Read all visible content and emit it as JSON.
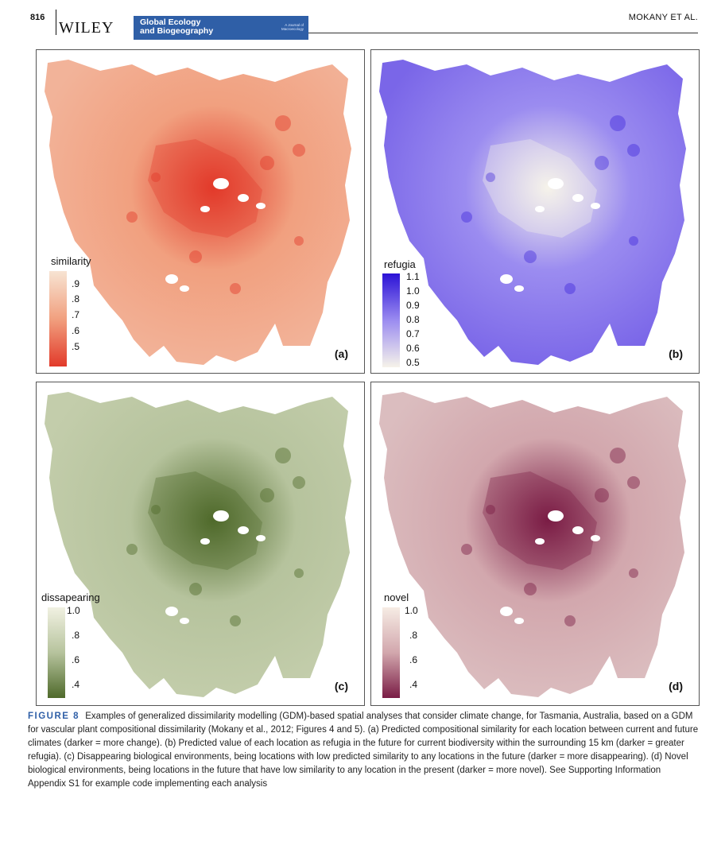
{
  "header": {
    "page_number": "816",
    "publisher": "WILEY",
    "journal_line1": "Global Ecology",
    "journal_line2": "and Biogeography",
    "journal_sub1": "A Journal of",
    "journal_sub2": "Macroecology",
    "authors": "MOKANY ET AL."
  },
  "panels": [
    {
      "label": "(a)",
      "legend_title": "similarity",
      "ticks": [
        ".9",
        ".8",
        ".7",
        ".6",
        ".5"
      ],
      "colors": {
        "light": "#f7e4d3",
        "mid": "#f1a07f",
        "dark": "#e23a2a",
        "base": "#f2b399"
      }
    },
    {
      "label": "(b)",
      "legend_title": "refugia",
      "ticks": [
        "1.1",
        "1.0",
        "0.9",
        "0.8",
        "0.7",
        "0.6",
        "0.5"
      ],
      "colors": {
        "light": "#f6f3ea",
        "mid": "#9b8cf0",
        "dark": "#2b12d6",
        "base": "#7a66e8"
      }
    },
    {
      "label": "(c)",
      "legend_title": "dissapearing",
      "ticks": [
        "1.0",
        ".8",
        ".6",
        ".4"
      ],
      "colors": {
        "light": "#f1f1e2",
        "mid": "#b6c39d",
        "dark": "#4f6a2b",
        "base": "#c3cdab"
      }
    },
    {
      "label": "(d)",
      "legend_title": "novel",
      "ticks": [
        "1.0",
        ".8",
        ".6",
        ".4"
      ],
      "colors": {
        "light": "#f6ece4",
        "mid": "#d2a7ad",
        "dark": "#7a1c45",
        "base": "#dbbdbf"
      }
    }
  ],
  "caption": {
    "figure_label": "FIGURE 8",
    "text": "Examples of generalized dissimilarity modelling (GDM)-based spatial analyses that consider climate change, for Tasmania, Australia, based on a GDM for vascular plant compositional dissimilarity (Mokany et al., 2012; Figures 4 and 5). (a) Predicted compositional similarity for each location between current and future climates (darker = more change). (b) Predicted value of each location as refugia in the future for current biodiversity within the surrounding 15 km (darker = greater refugia). (c) Disappearing biological environments, being locations with low predicted similarity to any locations in the future (darker = more disappearing). (d) Novel biological environments, being locations in the future that have low similarity to any location in the present (darker = more novel). See Supporting Information Appendix S1 for example code implementing each analysis"
  }
}
